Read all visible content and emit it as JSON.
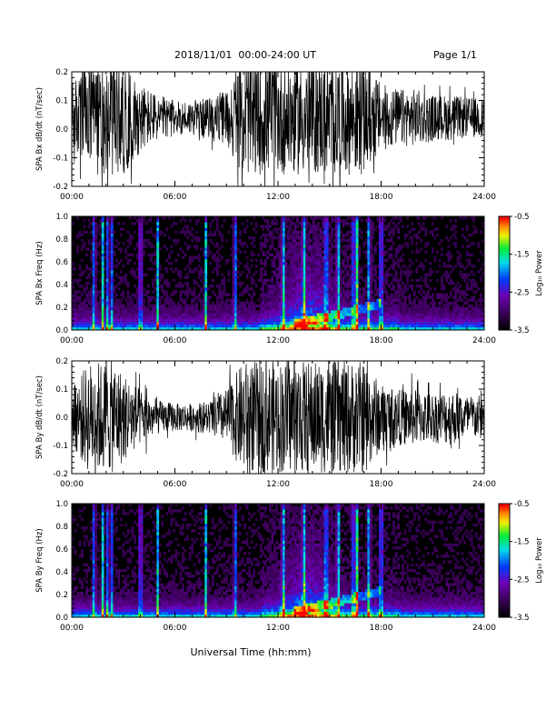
{
  "header": {
    "title": "2018/11/01  00:00-24:00 UT",
    "page": "Page 1/1"
  },
  "xaxis": {
    "label": "Universal Time (hh:mm)",
    "ticks": [
      "00:00",
      "06:00",
      "12:00",
      "18:00",
      "24:00"
    ],
    "range_hours": [
      0,
      24
    ]
  },
  "colorbar": {
    "label": "Log₁₀ Power",
    "ticks": [
      "-0.5",
      "-1.5",
      "-2.5",
      "-3.5"
    ],
    "range": [
      -3.5,
      -0.5
    ],
    "scale": "rainbow (black-purple-blue-cyan-green-yellow-orange-red)"
  },
  "colors": {
    "trace": "#000000",
    "background": "#000000",
    "frame": "#000000"
  },
  "chart_data": [
    {
      "type": "line",
      "ylabel": "SPA Bx dB/dt (nT/sec)",
      "ylim": [
        -0.2,
        0.2
      ],
      "yticks": [
        "-0.2",
        "-0.1",
        "0.0",
        "0.1",
        "0.2"
      ],
      "xlabel": "",
      "envelope_hours": [
        0,
        1,
        1.5,
        2,
        2.5,
        3,
        4,
        5,
        6,
        7,
        8,
        9,
        10,
        11,
        12,
        13,
        14,
        15,
        16,
        16.5,
        17,
        18,
        19,
        20,
        21,
        22,
        23,
        24
      ],
      "envelope_amplitude": [
        0.12,
        0.2,
        0.2,
        0.2,
        0.2,
        0.2,
        0.12,
        0.08,
        0.06,
        0.06,
        0.07,
        0.1,
        0.2,
        0.2,
        0.2,
        0.2,
        0.2,
        0.2,
        0.2,
        0.2,
        0.2,
        0.12,
        0.1,
        0.1,
        0.08,
        0.08,
        0.07,
        0.07
      ],
      "offset": 0.04
    },
    {
      "type": "heatmap",
      "ylabel": "SPA Bx Freq (Hz)",
      "ylim": [
        0.0,
        1.0
      ],
      "yticks": [
        "0.0",
        "0.2",
        "0.4",
        "0.6",
        "0.8",
        "1.0"
      ],
      "xlabel": "",
      "bursts_hours": [
        1.3,
        1.8,
        2.1,
        2.3,
        4.0,
        5.0,
        7.8,
        9.5,
        12.3,
        13.5,
        14.8,
        15.5,
        16.4,
        16.6,
        17.3,
        18.0
      ],
      "enhanced_activity_hours": [
        12.5,
        15.0
      ],
      "diurnal_feature": "band rising 0.05-0.25 Hz between 13:00 and 18:00"
    },
    {
      "type": "line",
      "ylabel": "SPA By dB/dt (nT/sec)",
      "ylim": [
        -0.2,
        0.2
      ],
      "yticks": [
        "-0.2",
        "-0.1",
        "0.0",
        "0.1",
        "0.2"
      ],
      "xlabel": "",
      "envelope_hours": [
        0,
        1,
        1.5,
        2,
        2.5,
        3,
        4,
        5,
        6,
        7,
        8,
        9,
        10,
        11,
        12,
        13,
        14,
        15,
        16,
        16.5,
        17,
        18,
        19,
        20,
        21,
        22,
        23,
        24
      ],
      "envelope_amplitude": [
        0.1,
        0.2,
        0.2,
        0.2,
        0.2,
        0.16,
        0.1,
        0.06,
        0.05,
        0.05,
        0.06,
        0.1,
        0.2,
        0.2,
        0.2,
        0.2,
        0.2,
        0.2,
        0.2,
        0.2,
        0.2,
        0.12,
        0.1,
        0.1,
        0.09,
        0.1,
        0.08,
        0.08
      ],
      "offset": 0.0
    },
    {
      "type": "heatmap",
      "ylabel": "SPA By Freq (Hz)",
      "ylim": [
        0.0,
        1.0
      ],
      "yticks": [
        "0.0",
        "0.2",
        "0.4",
        "0.6",
        "0.8",
        "1.0"
      ],
      "xlabel": "Universal Time (hh:mm)",
      "bursts_hours": [
        1.3,
        1.8,
        2.1,
        2.3,
        4.0,
        5.0,
        7.8,
        9.5,
        12.3,
        13.5,
        14.8,
        15.5,
        16.4,
        16.6,
        17.3,
        18.0
      ],
      "enhanced_activity_hours": [
        12.5,
        15.0
      ],
      "diurnal_feature": "band rising 0.05-0.20 Hz between 13:00 and 18:00"
    }
  ]
}
